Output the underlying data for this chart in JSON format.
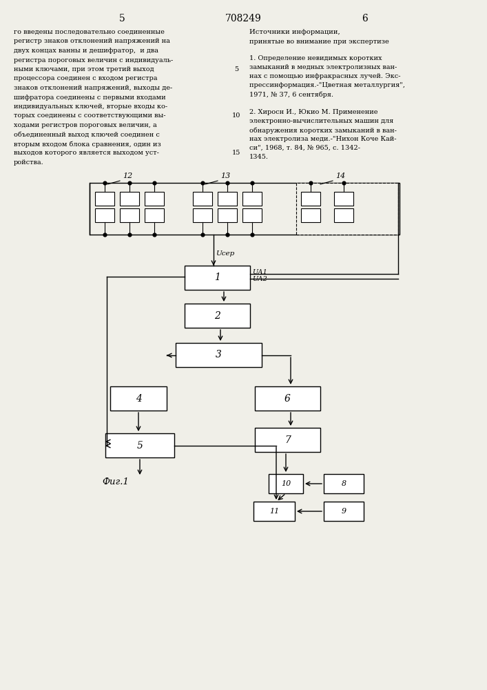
{
  "page_number_left": "5",
  "page_number_center": "708249",
  "page_number_right": "6",
  "text_left": "го введены последовательно соединенные\nрегистр знаков отклонений напряжений на\nдвух концах ванны и дешифратор,  и два\nрегистра пороговых величин с индивидуаль-\nными ключами, при этом третий выход      5\nпроцессора соединен с входом регистра\nзнаков отклонений напряжений, выходы де-\nшифратора соединены с первыми входами\nиндивидуальных ключей, вторые входы ко-\nторых соединены с соответствующими вы-  10\nходами регистров пороговых величин, а\nобъединенный выход ключей соединен с\nвторым входом блока сравнения, один из\nвыходов которого является выходом уст-  15\nройства.",
  "text_right_title": "Источники информации,",
  "text_right_subtitle": "принятые во внимание при экспертизе",
  "text_right_body": "1. Определение невидимых коротких\nзамыканий в медных электролизных ван-\nнах с помощью инфракрасных лучей. Экс-\nпрессинформация.-\"Цветная металлургия\",\n1971, № 37, 6 сентября.\n\n2. Хиросн И., Юкио М. Применение\nэлектронно-вычислительных машин для\nобнаружения коротких замыканий в ван-\nнах электролиза меди.-\"Нихон Коче Кай-\nси\", 1968, т. 84, № 965, с. 1342-\n1345.",
  "fig_caption": "Фиг.1",
  "bg_color": "#f0efe8"
}
